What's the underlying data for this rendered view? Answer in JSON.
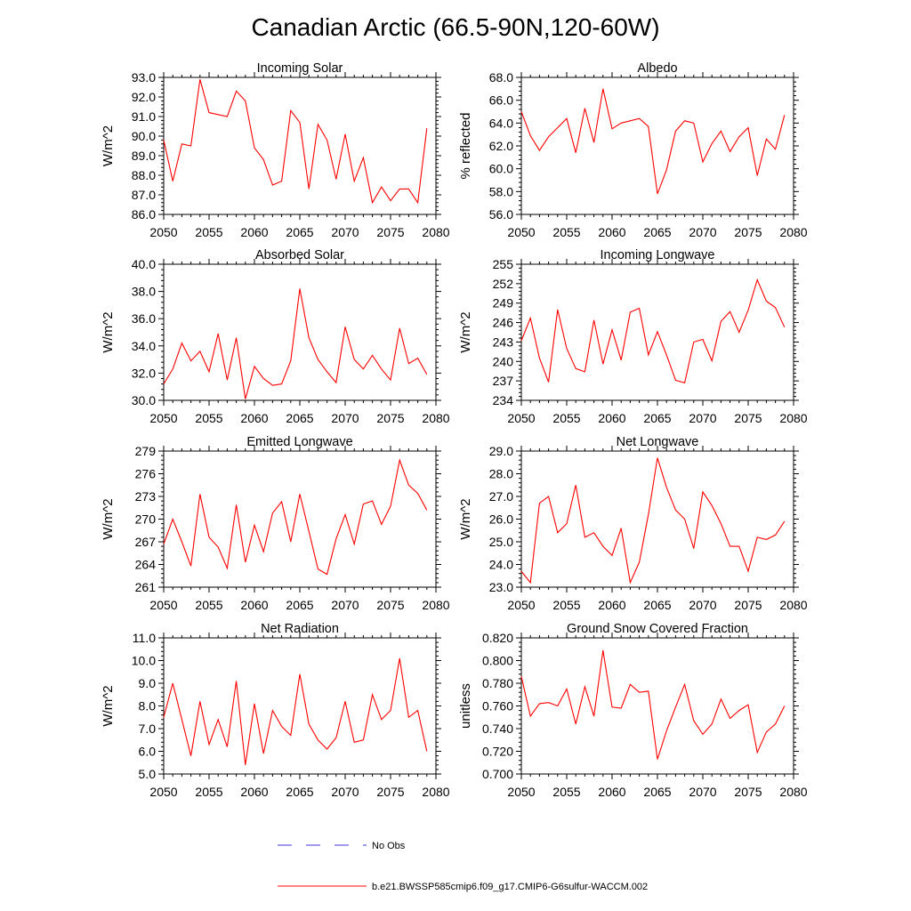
{
  "figure": {
    "title": "Canadian Arctic (66.5-90N,120-60W)",
    "legend": [
      {
        "label": "No Obs",
        "color": "#3b3bd6",
        "dashed": true
      },
      {
        "label": "b.e21.BWSSP585cmip6.f09_g17.CMIP6-G6sulfur-WACCM.002",
        "color": "#ff0000",
        "dashed": false
      }
    ]
  },
  "chart_data": [
    {
      "type": "line",
      "title": "Incoming Solar",
      "ylabel": "W/m^2",
      "xlabel": "",
      "xlim": [
        2050,
        2080
      ],
      "ylim": [
        86,
        93
      ],
      "yticks": [
        "86.0",
        "87.0",
        "88.0",
        "89.0",
        "90.0",
        "91.0",
        "92.0",
        "93.0"
      ],
      "ytick_values": [
        86,
        87,
        88,
        89,
        90,
        91,
        92,
        93
      ],
      "xticks": [
        "2050",
        "2055",
        "2060",
        "2065",
        "2070",
        "2075",
        "2080"
      ],
      "x": [
        2050,
        2051,
        2052,
        2053,
        2054,
        2055,
        2056,
        2057,
        2058,
        2059,
        2060,
        2061,
        2062,
        2063,
        2064,
        2065,
        2066,
        2067,
        2068,
        2069,
        2070,
        2071,
        2072,
        2073,
        2074,
        2075,
        2076,
        2077,
        2078,
        2079
      ],
      "series": [
        {
          "color": "#ff0000",
          "values": [
            89.8,
            87.7,
            89.6,
            89.5,
            92.9,
            91.2,
            91.1,
            91.0,
            92.3,
            91.8,
            89.4,
            88.8,
            87.5,
            87.7,
            91.3,
            90.7,
            87.3,
            90.6,
            89.8,
            87.8,
            90.1,
            87.7,
            88.9,
            86.6,
            87.4,
            86.7,
            87.3,
            87.3,
            86.6,
            90.4
          ]
        }
      ]
    },
    {
      "type": "line",
      "title": "Albedo",
      "ylabel": "% reflected",
      "xlabel": "",
      "xlim": [
        2050,
        2080
      ],
      "ylim": [
        56,
        68
      ],
      "yticks": [
        "56.0",
        "58.0",
        "60.0",
        "62.0",
        "64.0",
        "66.0",
        "68.0"
      ],
      "ytick_values": [
        56,
        58,
        60,
        62,
        64,
        66,
        68
      ],
      "xticks": [
        "2050",
        "2055",
        "2060",
        "2065",
        "2070",
        "2075",
        "2080"
      ],
      "x": [
        2050,
        2051,
        2052,
        2053,
        2054,
        2055,
        2056,
        2057,
        2058,
        2059,
        2060,
        2061,
        2062,
        2063,
        2064,
        2065,
        2066,
        2067,
        2068,
        2069,
        2070,
        2071,
        2072,
        2073,
        2074,
        2075,
        2076,
        2077,
        2078,
        2079
      ],
      "series": [
        {
          "color": "#ff0000",
          "values": [
            65.0,
            62.9,
            61.6,
            62.8,
            63.6,
            64.4,
            61.4,
            65.3,
            62.3,
            67.0,
            63.5,
            64.0,
            64.2,
            64.4,
            63.7,
            57.8,
            59.9,
            63.3,
            64.2,
            64.0,
            60.6,
            62.2,
            63.3,
            61.5,
            62.8,
            63.6,
            59.4,
            62.6,
            61.7,
            64.7
          ]
        }
      ]
    },
    {
      "type": "line",
      "title": "Absorbed Solar",
      "ylabel": "W/m^2",
      "xlabel": "",
      "xlim": [
        2050,
        2080
      ],
      "ylim": [
        30,
        40
      ],
      "yticks": [
        "30.0",
        "32.0",
        "34.0",
        "36.0",
        "38.0",
        "40.0"
      ],
      "ytick_values": [
        30,
        32,
        34,
        36,
        38,
        40
      ],
      "xticks": [
        "2050",
        "2055",
        "2060",
        "2065",
        "2070",
        "2075",
        "2080"
      ],
      "x": [
        2050,
        2051,
        2052,
        2053,
        2054,
        2055,
        2056,
        2057,
        2058,
        2059,
        2060,
        2061,
        2062,
        2063,
        2064,
        2065,
        2066,
        2067,
        2068,
        2069,
        2070,
        2071,
        2072,
        2073,
        2074,
        2075,
        2076,
        2077,
        2078,
        2079
      ],
      "series": [
        {
          "color": "#ff0000",
          "values": [
            31.2,
            32.3,
            34.2,
            32.9,
            33.6,
            32.1,
            34.9,
            31.5,
            34.6,
            30.1,
            32.5,
            31.6,
            31.1,
            31.2,
            32.9,
            38.2,
            34.6,
            33.0,
            32.1,
            31.3,
            35.4,
            33.0,
            32.3,
            33.3,
            32.3,
            31.5,
            35.3,
            32.7,
            33.1,
            31.9
          ]
        }
      ]
    },
    {
      "type": "line",
      "title": "Incoming Longwave",
      "ylabel": "W/m^2",
      "xlabel": "",
      "xlim": [
        2050,
        2080
      ],
      "ylim": [
        234,
        255
      ],
      "yticks": [
        "234",
        "237",
        "240",
        "243",
        "246",
        "249",
        "252",
        "255"
      ],
      "ytick_values": [
        234,
        237,
        240,
        243,
        246,
        249,
        252,
        255
      ],
      "xticks": [
        "2050",
        "2055",
        "2060",
        "2065",
        "2070",
        "2075",
        "2080"
      ],
      "x": [
        2050,
        2051,
        2052,
        2053,
        2054,
        2055,
        2056,
        2057,
        2058,
        2059,
        2060,
        2061,
        2062,
        2063,
        2064,
        2065,
        2066,
        2067,
        2068,
        2069,
        2070,
        2071,
        2072,
        2073,
        2074,
        2075,
        2076,
        2077,
        2078,
        2079
      ],
      "series": [
        {
          "color": "#ff0000",
          "values": [
            243.2,
            246.7,
            240.5,
            236.8,
            248.0,
            242.0,
            238.9,
            238.4,
            246.4,
            239.6,
            244.9,
            240.2,
            247.6,
            248.2,
            241.0,
            244.6,
            241.0,
            237.1,
            236.7,
            243.0,
            243.4,
            240.1,
            246.2,
            247.7,
            244.5,
            247.9,
            252.6,
            249.3,
            248.3,
            245.3
          ]
        }
      ]
    },
    {
      "type": "line",
      "title": "Emitted Longwave",
      "ylabel": "W/m^2",
      "xlabel": "",
      "xlim": [
        2050,
        2080
      ],
      "ylim": [
        261,
        279
      ],
      "yticks": [
        "261",
        "264",
        "267",
        "270",
        "273",
        "276",
        "279"
      ],
      "ytick_values": [
        261,
        264,
        267,
        270,
        273,
        276,
        279
      ],
      "xticks": [
        "2050",
        "2055",
        "2060",
        "2065",
        "2070",
        "2075",
        "2080"
      ],
      "x": [
        2050,
        2051,
        2052,
        2053,
        2054,
        2055,
        2056,
        2057,
        2058,
        2059,
        2060,
        2061,
        2062,
        2063,
        2064,
        2065,
        2066,
        2067,
        2068,
        2069,
        2070,
        2071,
        2072,
        2073,
        2074,
        2075,
        2076,
        2077,
        2078,
        2079
      ],
      "series": [
        {
          "color": "#ff0000",
          "values": [
            266.7,
            270.0,
            267.0,
            263.8,
            273.3,
            267.6,
            266.3,
            263.5,
            271.9,
            264.3,
            269.2,
            265.7,
            270.8,
            272.3,
            267.0,
            273.3,
            268.4,
            263.4,
            262.7,
            267.4,
            270.6,
            266.7,
            272.0,
            272.4,
            269.3,
            271.7,
            277.8,
            274.5,
            273.4,
            271.2
          ]
        }
      ]
    },
    {
      "type": "line",
      "title": "Net Longwave",
      "ylabel": "W/m^2",
      "xlabel": "",
      "xlim": [
        2050,
        2080
      ],
      "ylim": [
        23,
        29
      ],
      "yticks": [
        "23.0",
        "24.0",
        "25.0",
        "26.0",
        "27.0",
        "28.0",
        "29.0"
      ],
      "ytick_values": [
        23,
        24,
        25,
        26,
        27,
        28,
        29
      ],
      "xticks": [
        "2050",
        "2055",
        "2060",
        "2065",
        "2070",
        "2075",
        "2080"
      ],
      "x": [
        2050,
        2051,
        2052,
        2053,
        2054,
        2055,
        2056,
        2057,
        2058,
        2059,
        2060,
        2061,
        2062,
        2063,
        2064,
        2065,
        2066,
        2067,
        2068,
        2069,
        2070,
        2071,
        2072,
        2073,
        2074,
        2075,
        2076,
        2077,
        2078,
        2079
      ],
      "series": [
        {
          "color": "#ff0000",
          "values": [
            23.7,
            23.2,
            26.7,
            27.0,
            25.4,
            25.8,
            27.5,
            25.2,
            25.4,
            24.8,
            24.4,
            25.6,
            23.2,
            24.1,
            26.2,
            28.7,
            27.4,
            26.4,
            26.0,
            24.7,
            27.2,
            26.6,
            25.8,
            24.8,
            24.8,
            23.7,
            25.2,
            25.1,
            25.3,
            25.9
          ]
        }
      ]
    },
    {
      "type": "line",
      "title": "Net Radiation",
      "ylabel": "W/m^2",
      "xlabel": "",
      "xlim": [
        2050,
        2080
      ],
      "ylim": [
        5,
        11
      ],
      "yticks": [
        "5.0",
        "6.0",
        "7.0",
        "8.0",
        "9.0",
        "10.0",
        "11.0"
      ],
      "ytick_values": [
        5,
        6,
        7,
        8,
        9,
        10,
        11
      ],
      "xticks": [
        "2050",
        "2055",
        "2060",
        "2065",
        "2070",
        "2075",
        "2080"
      ],
      "x": [
        2050,
        2051,
        2052,
        2053,
        2054,
        2055,
        2056,
        2057,
        2058,
        2059,
        2060,
        2061,
        2062,
        2063,
        2064,
        2065,
        2066,
        2067,
        2068,
        2069,
        2070,
        2071,
        2072,
        2073,
        2074,
        2075,
        2076,
        2077,
        2078,
        2079
      ],
      "series": [
        {
          "color": "#ff0000",
          "values": [
            7.5,
            9.0,
            7.4,
            5.8,
            8.2,
            6.3,
            7.4,
            6.2,
            9.1,
            5.4,
            8.1,
            5.9,
            7.8,
            7.1,
            6.7,
            9.4,
            7.2,
            6.5,
            6.1,
            6.6,
            8.2,
            6.4,
            6.5,
            8.5,
            7.4,
            7.8,
            10.1,
            7.5,
            7.8,
            6.0
          ]
        }
      ]
    },
    {
      "type": "line",
      "title": "Ground Snow Covered Fraction",
      "ylabel": "unitless",
      "xlabel": "",
      "xlim": [
        2050,
        2080
      ],
      "ylim": [
        0.7,
        0.82
      ],
      "yticks": [
        "0.700",
        "0.720",
        "0.740",
        "0.760",
        "0.780",
        "0.800",
        "0.820"
      ],
      "ytick_values": [
        0.7,
        0.72,
        0.74,
        0.76,
        0.78,
        0.8,
        0.82
      ],
      "xticks": [
        "2050",
        "2055",
        "2060",
        "2065",
        "2070",
        "2075",
        "2080"
      ],
      "x": [
        2050,
        2051,
        2052,
        2053,
        2054,
        2055,
        2056,
        2057,
        2058,
        2059,
        2060,
        2061,
        2062,
        2063,
        2064,
        2065,
        2066,
        2067,
        2068,
        2069,
        2070,
        2071,
        2072,
        2073,
        2074,
        2075,
        2076,
        2077,
        2078,
        2079
      ],
      "series": [
        {
          "color": "#ff0000",
          "values": [
            0.786,
            0.751,
            0.762,
            0.763,
            0.76,
            0.775,
            0.744,
            0.777,
            0.751,
            0.809,
            0.759,
            0.758,
            0.779,
            0.772,
            0.773,
            0.713,
            0.738,
            0.759,
            0.779,
            0.747,
            0.735,
            0.744,
            0.766,
            0.749,
            0.756,
            0.761,
            0.719,
            0.737,
            0.744,
            0.76
          ]
        }
      ]
    }
  ]
}
